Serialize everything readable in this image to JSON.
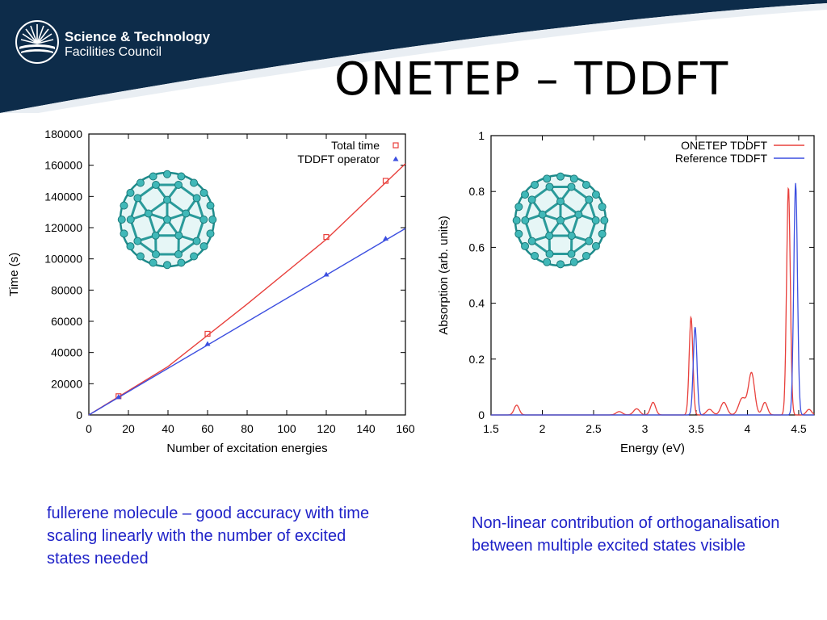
{
  "header": {
    "logo_line1": "Science & Technology",
    "logo_line2": "Facilities Council",
    "title": "ONETEP – TDDFT",
    "brand_color": "#0d2c4a"
  },
  "captions": {
    "left": "fullerene molecule – good accuracy with time scaling linearly with the number of excited states needed",
    "right": "Non-linear contribution of orthoganalisation between  multiple excited states visible"
  },
  "chart_data": [
    {
      "type": "line",
      "xlabel": "Number of excitation energies",
      "ylabel": "Time (s)",
      "xlim": [
        0,
        160
      ],
      "ylim": [
        0,
        180000
      ],
      "xticks": [
        0,
        20,
        40,
        60,
        80,
        100,
        120,
        140,
        160
      ],
      "yticks": [
        0,
        20000,
        40000,
        60000,
        80000,
        100000,
        120000,
        140000,
        160000,
        180000
      ],
      "grid": false,
      "legend_position": "top-right",
      "series": [
        {
          "name": "Total time",
          "color": "#e8403c",
          "marker": "square",
          "points": [
            [
              15,
              12000
            ],
            [
              60,
              52000
            ],
            [
              120,
              114000
            ],
            [
              150,
              150000
            ]
          ],
          "fit": [
            [
              0,
              0
            ],
            [
              40,
              31000
            ],
            [
              80,
              71000
            ],
            [
              120,
              112500
            ],
            [
              160,
              161000
            ]
          ]
        },
        {
          "name": "TDDFT operator",
          "color": "#3c4fe0",
          "marker": "triangle",
          "points": [
            [
              15,
              11500
            ],
            [
              60,
              45500
            ],
            [
              120,
              90000
            ],
            [
              150,
              113000
            ]
          ],
          "fit": [
            [
              0,
              0
            ],
            [
              160,
              119500
            ]
          ]
        }
      ],
      "inset": "fullerene-molecule"
    },
    {
      "type": "line",
      "xlabel": "Energy (eV)",
      "ylabel": "Absorption (arb. units)",
      "xlim": [
        1.5,
        4.65
      ],
      "ylim": [
        0,
        1
      ],
      "xticks": [
        1.5,
        2,
        2.5,
        3,
        3.5,
        4,
        4.5
      ],
      "yticks": [
        0,
        0.2,
        0.4,
        0.6,
        0.8,
        1
      ],
      "grid": false,
      "legend_position": "top-right",
      "series": [
        {
          "name": "ONETEP TDDFT",
          "color": "#e8403c",
          "peaks": [
            [
              1.75,
              0.035,
              0.025
            ],
            [
              2.75,
              0.012,
              0.03
            ],
            [
              2.92,
              0.022,
              0.03
            ],
            [
              3.08,
              0.045,
              0.025
            ],
            [
              3.45,
              0.35,
              0.018
            ],
            [
              3.63,
              0.02,
              0.03
            ],
            [
              3.77,
              0.045,
              0.03
            ],
            [
              3.95,
              0.06,
              0.035
            ],
            [
              4.04,
              0.15,
              0.03
            ],
            [
              4.17,
              0.045,
              0.025
            ],
            [
              4.4,
              0.815,
              0.018
            ],
            [
              4.6,
              0.02,
              0.025
            ]
          ]
        },
        {
          "name": "Reference TDDFT",
          "color": "#3c4fe0",
          "peaks": [
            [
              3.49,
              0.315,
              0.018
            ],
            [
              4.47,
              0.83,
              0.018
            ]
          ]
        }
      ],
      "inset": "fullerene-molecule"
    }
  ]
}
